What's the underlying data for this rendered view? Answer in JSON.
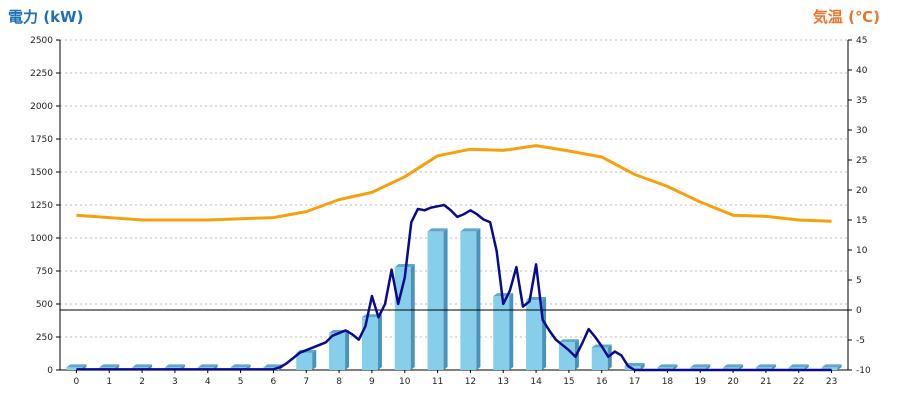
{
  "chart_data": {
    "type": "bar+line",
    "title": "",
    "y_left_label": "電力 (kW)",
    "y_right_label": "気温 (℃)",
    "y_left_lim": [
      0,
      2500
    ],
    "y_left_ticks": [
      0,
      250,
      500,
      750,
      1000,
      1250,
      1500,
      1750,
      2000,
      2250,
      2500
    ],
    "y_right_lim": [
      -10,
      45
    ],
    "y_right_ticks": [
      -10,
      -5,
      0,
      5,
      10,
      15,
      20,
      25,
      30,
      35,
      40,
      45
    ],
    "categories": [
      "0",
      "1",
      "2",
      "3",
      "4",
      "5",
      "6",
      "7",
      "8",
      "9",
      "10",
      "11",
      "12",
      "13",
      "14",
      "15",
      "16",
      "17",
      "18",
      "19",
      "20",
      "21",
      "22",
      "23"
    ],
    "grid": true,
    "series": [
      {
        "type": "bar",
        "axis": "left",
        "color": "#87ceeb",
        "values": [
          20,
          20,
          20,
          20,
          20,
          20,
          20,
          130,
          280,
          400,
          780,
          1050,
          1050,
          560,
          530,
          210,
          170,
          30,
          20,
          20,
          20,
          20,
          20,
          20
        ]
      },
      {
        "type": "line",
        "axis": "left",
        "color": "#0a0a8c",
        "x": [
          0,
          1,
          2,
          3,
          4,
          5,
          6,
          6.2,
          6.4,
          6.6,
          6.8,
          7,
          7.2,
          7.4,
          7.6,
          7.8,
          8,
          8.2,
          8.4,
          8.6,
          8.8,
          9,
          9.2,
          9.4,
          9.6,
          9.8,
          10,
          10.2,
          10.4,
          10.6,
          10.8,
          11,
          11.2,
          11.4,
          11.6,
          11.8,
          12,
          12.2,
          12.4,
          12.6,
          12.8,
          13,
          13.2,
          13.4,
          13.6,
          13.8,
          14,
          14.2,
          14.4,
          14.6,
          14.8,
          15,
          15.2,
          15.4,
          15.6,
          15.8,
          16,
          16.2,
          16.4,
          16.6,
          16.8,
          17,
          17.2,
          17.4,
          18,
          19,
          20,
          21,
          22,
          23
        ],
        "values": [
          5,
          5,
          5,
          5,
          5,
          5,
          5,
          20,
          50,
          90,
          130,
          150,
          170,
          190,
          210,
          260,
          280,
          300,
          270,
          230,
          330,
          560,
          400,
          500,
          760,
          500,
          700,
          1120,
          1220,
          1210,
          1230,
          1240,
          1250,
          1210,
          1160,
          1180,
          1210,
          1180,
          1140,
          1120,
          900,
          500,
          600,
          780,
          480,
          520,
          800,
          380,
          300,
          230,
          190,
          150,
          100,
          200,
          310,
          250,
          180,
          100,
          140,
          110,
          30,
          0,
          0,
          0,
          0,
          0,
          0,
          0,
          0,
          0
        ]
      },
      {
        "type": "line",
        "axis": "right",
        "color": "#f5a10f",
        "values": [
          15.8,
          15.4,
          15.0,
          15.0,
          15.0,
          15.2,
          15.4,
          16.4,
          18.4,
          19.6,
          22.2,
          25.7,
          26.8,
          26.6,
          27.4,
          26.5,
          25.5,
          22.6,
          20.6,
          18.0,
          15.8,
          15.6,
          15.0,
          14.8
        ]
      }
    ],
    "reference_line": {
      "axis": "right",
      "value": 0,
      "color": "#000000"
    }
  }
}
